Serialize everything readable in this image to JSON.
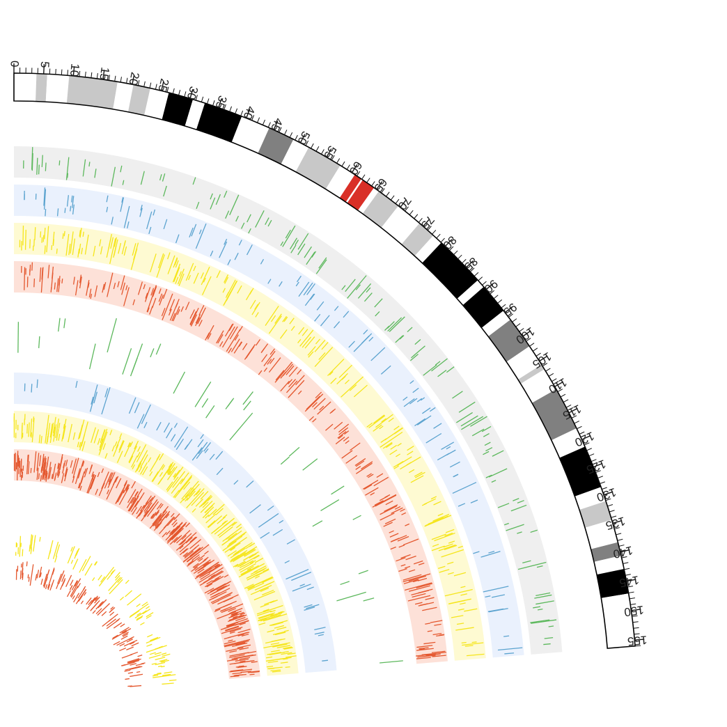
{
  "ideogram": {
    "max_mb": 156,
    "tick_labels": [
      "0",
      "5",
      "10",
      "15",
      "20",
      "25",
      "30",
      "35",
      "40",
      "45",
      "50",
      "55",
      "60",
      "65",
      "70",
      "75",
      "80",
      "85",
      "90",
      "95",
      "100",
      "105",
      "110",
      "115",
      "120",
      "125",
      "130",
      "135",
      "140",
      "145",
      "150",
      "155"
    ],
    "bands": [
      {
        "start": 0.0,
        "end": 3.8,
        "stain": "gneg"
      },
      {
        "start": 3.8,
        "end": 5.6,
        "stain": "gpos25"
      },
      {
        "start": 5.6,
        "end": 9.3,
        "stain": "gneg"
      },
      {
        "start": 9.3,
        "end": 17.5,
        "stain": "gpos25"
      },
      {
        "start": 17.5,
        "end": 20.2,
        "stain": "gneg"
      },
      {
        "start": 20.2,
        "end": 23.1,
        "stain": "gpos25"
      },
      {
        "start": 23.1,
        "end": 26.3,
        "stain": "gneg"
      },
      {
        "start": 26.3,
        "end": 30.5,
        "stain": "gpos100"
      },
      {
        "start": 30.5,
        "end": 32.6,
        "stain": "gneg"
      },
      {
        "start": 32.6,
        "end": 39.2,
        "stain": "gpos100"
      },
      {
        "start": 39.2,
        "end": 44.2,
        "stain": "gneg"
      },
      {
        "start": 44.2,
        "end": 48.7,
        "stain": "gpos75"
      },
      {
        "start": 48.7,
        "end": 51.6,
        "stain": "gneg"
      },
      {
        "start": 51.6,
        "end": 57.7,
        "stain": "gpos25"
      },
      {
        "start": 57.7,
        "end": 60.6,
        "stain": "gneg"
      },
      {
        "start": 60.6,
        "end": 61.9,
        "stain": "acen"
      },
      {
        "start": 62.2,
        "end": 64.5,
        "stain": "acen"
      },
      {
        "start": 64.5,
        "end": 65.5,
        "stain": "gneg"
      },
      {
        "start": 65.5,
        "end": 69.6,
        "stain": "gpos25"
      },
      {
        "start": 69.6,
        "end": 74.2,
        "stain": "gneg"
      },
      {
        "start": 74.2,
        "end": 77.3,
        "stain": "gpos25"
      },
      {
        "start": 77.3,
        "end": 79.1,
        "stain": "gneg"
      },
      {
        "start": 79.1,
        "end": 87.9,
        "stain": "gpos100"
      },
      {
        "start": 87.9,
        "end": 89.4,
        "stain": "gneg"
      },
      {
        "start": 89.4,
        "end": 94.6,
        "stain": "gpos100"
      },
      {
        "start": 94.6,
        "end": 96.5,
        "stain": "gneg"
      },
      {
        "start": 96.5,
        "end": 102.0,
        "stain": "gpos75"
      },
      {
        "start": 102.0,
        "end": 105.7,
        "stain": "gneg"
      },
      {
        "start": 105.7,
        "end": 106.6,
        "stain": "gpos25"
      },
      {
        "start": 106.6,
        "end": 110.5,
        "stain": "gneg"
      },
      {
        "start": 110.5,
        "end": 117.9,
        "stain": "gpos75"
      },
      {
        "start": 117.9,
        "end": 121.3,
        "stain": "gneg"
      },
      {
        "start": 121.3,
        "end": 128.6,
        "stain": "gpos100"
      },
      {
        "start": 128.6,
        "end": 131.1,
        "stain": "gneg"
      },
      {
        "start": 131.1,
        "end": 134.4,
        "stain": "gpos25"
      },
      {
        "start": 134.4,
        "end": 138.3,
        "stain": "gneg"
      },
      {
        "start": 138.3,
        "end": 140.6,
        "stain": "gpos75"
      },
      {
        "start": 140.6,
        "end": 142.9,
        "stain": "gneg"
      },
      {
        "start": 142.9,
        "end": 147.1,
        "stain": "gpos100"
      },
      {
        "start": 147.1,
        "end": 156.0,
        "stain": "gneg"
      }
    ]
  },
  "stain_colors": {
    "gneg": "#ffffff",
    "gpos25": "#c8c8c8",
    "gpos50": "#a0a0a0",
    "gpos75": "#808080",
    "gpos100": "#000000",
    "acen": "#d92f27"
  },
  "series_colors": {
    "green": "#5cb85c",
    "blue": "#5ba3cf",
    "yellow": "#f5e51b",
    "red": "#e4572e"
  },
  "tracks": [
    {
      "id": "gray-band",
      "bg": "#efefef",
      "color": "green",
      "density": 110,
      "seed": 11
    },
    {
      "id": "blue-band",
      "bg": "#eaf1fd",
      "color": "blue",
      "density": 95,
      "seed": 23
    },
    {
      "id": "yellow-band",
      "bg": "#fefad2",
      "color": "yellow",
      "density": 190,
      "seed": 37
    },
    {
      "id": "red-band",
      "bg": "#fde1d8",
      "color": "red",
      "density": 230,
      "seed": 41
    },
    {
      "id": "white-green-band",
      "bg": "",
      "color": "green",
      "density": 32,
      "seed": 53
    },
    {
      "id": "blue-band-2",
      "bg": "#eaf1fd",
      "color": "blue",
      "density": 55,
      "seed": 61
    },
    {
      "id": "yellow-band-2",
      "bg": "#fefad2",
      "color": "yellow",
      "density": 300,
      "seed": 71
    },
    {
      "id": "red-band-2",
      "bg": "#fde1d8",
      "color": "red",
      "density": 360,
      "seed": 83
    },
    {
      "id": "inner-mixed-1",
      "bg": "",
      "color": "yellow",
      "density": 90,
      "seed": 97
    },
    {
      "id": "inner-mixed-2",
      "bg": "",
      "color": "red",
      "density": 120,
      "seed": 101
    }
  ]
}
